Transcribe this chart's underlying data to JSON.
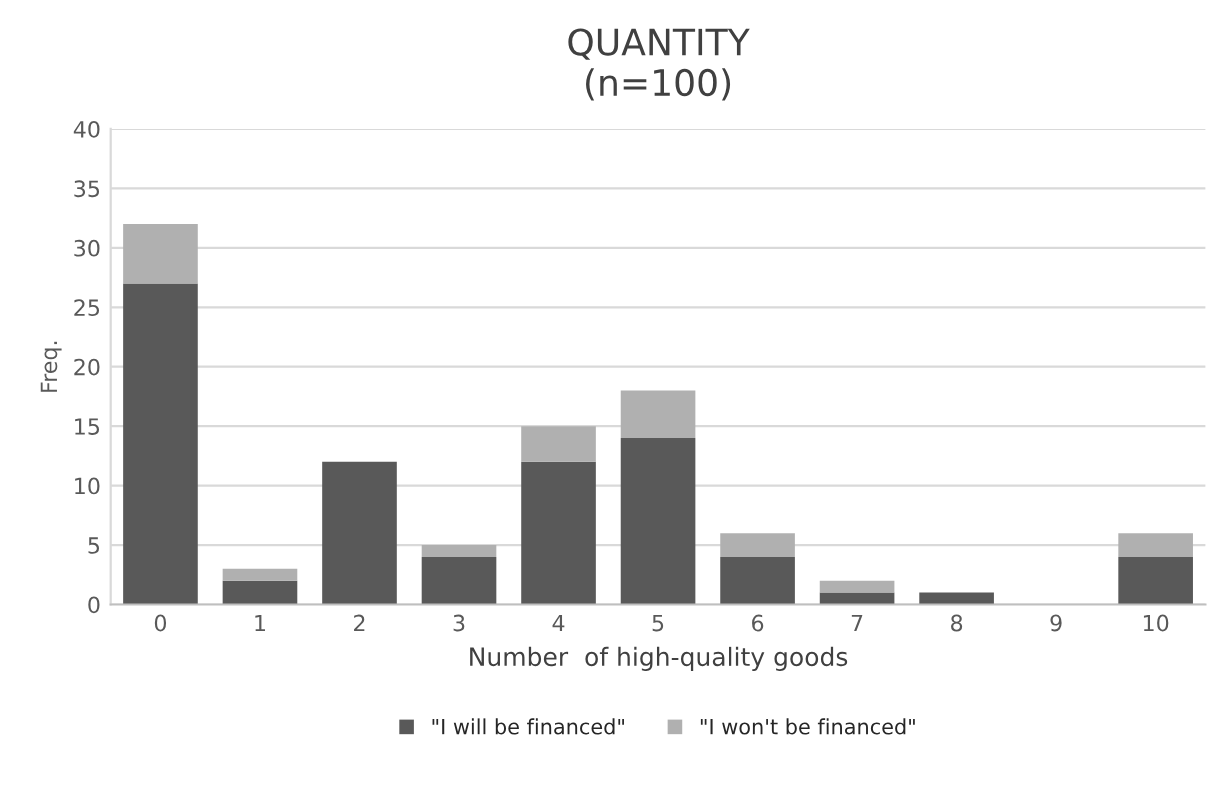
{
  "chart_data": {
    "type": "bar",
    "title": "QUANTITY\n(n=100)",
    "xlabel": "Number  of high-quality goods",
    "ylabel": "Freq.",
    "categories": [
      "0",
      "1",
      "2",
      "3",
      "4",
      "5",
      "6",
      "7",
      "8",
      "9",
      "10"
    ],
    "stacked": true,
    "series": [
      {
        "name": "\"I will be financed\"",
        "color": "#595959",
        "values": [
          27,
          2,
          12,
          4,
          12,
          14,
          4,
          1,
          1,
          0,
          4
        ]
      },
      {
        "name": "\"I won't be financed\"",
        "color": "#b0b0b0",
        "values": [
          5,
          1,
          0,
          1,
          3,
          4,
          2,
          1,
          0,
          0,
          2
        ]
      }
    ],
    "ylim": [
      0,
      40
    ],
    "yticks": [
      0,
      5,
      10,
      15,
      20,
      25,
      30,
      35,
      40
    ],
    "grid": "y",
    "legend": "bottom"
  }
}
